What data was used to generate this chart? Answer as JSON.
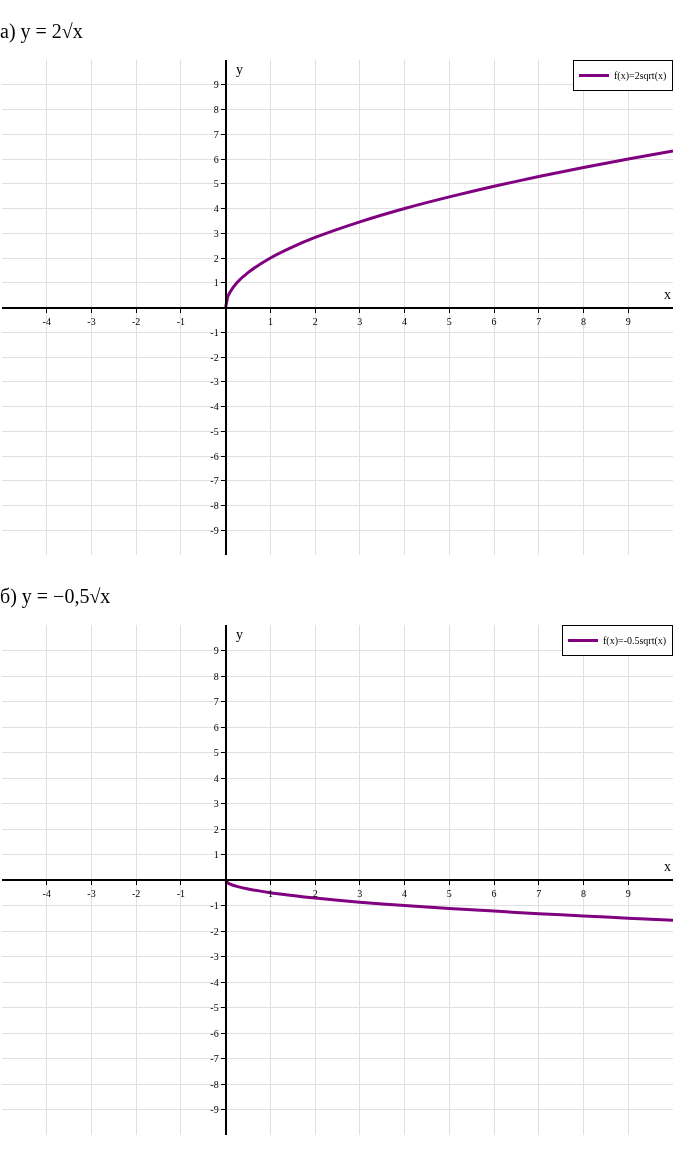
{
  "chart_data": [
    {
      "type": "line",
      "title": "а) y = 2√x",
      "xlabel": "x",
      "ylabel": "y",
      "xlim": [
        -5,
        10
      ],
      "ylim": [
        -10,
        10
      ],
      "xticks": [
        -4,
        -3,
        -2,
        -1,
        1,
        2,
        3,
        4,
        5,
        6,
        7,
        8,
        9
      ],
      "yticks": [
        -9,
        -8,
        -7,
        -6,
        -5,
        -4,
        -3,
        -2,
        -1,
        1,
        2,
        3,
        4,
        5,
        6,
        7,
        8,
        9
      ],
      "grid": true,
      "legend": "top right",
      "marker": "none",
      "line_style": "solid",
      "series": [
        {
          "name": "f(x)=2sqrt(x)",
          "color": "#800080",
          "x": [
            0,
            0.05,
            0.1,
            0.25,
            0.5,
            1,
            1.5,
            2,
            3,
            4,
            5,
            6,
            7,
            8,
            9,
            10
          ],
          "values": [
            0,
            0.45,
            0.63,
            1,
            1.41,
            2,
            2.45,
            2.83,
            3.46,
            4,
            4.47,
            4.9,
            5.29,
            5.66,
            6,
            6.32
          ]
        }
      ]
    },
    {
      "type": "line",
      "title": "б) y = −0,5√x",
      "xlabel": "x",
      "ylabel": "y",
      "xlim": [
        -5,
        10
      ],
      "ylim": [
        -10,
        10
      ],
      "xticks": [
        -4,
        -3,
        -2,
        -1,
        1,
        2,
        3,
        4,
        5,
        6,
        7,
        8,
        9
      ],
      "yticks": [
        -9,
        -8,
        -7,
        -6,
        -5,
        -4,
        -3,
        -2,
        -1,
        1,
        2,
        3,
        4,
        5,
        6,
        7,
        8,
        9
      ],
      "grid": true,
      "legend": "top right",
      "marker": "none",
      "line_style": "solid",
      "series": [
        {
          "name": "f(x)=-0.5sqrt(x)",
          "color": "#800080",
          "x": [
            0,
            0.05,
            0.1,
            0.25,
            0.5,
            1,
            1.5,
            2,
            3,
            4,
            5,
            6,
            7,
            8,
            9,
            10
          ],
          "values": [
            0,
            -0.11,
            -0.16,
            -0.25,
            -0.35,
            -0.5,
            -0.61,
            -0.71,
            -0.87,
            -1,
            -1.12,
            -1.22,
            -1.32,
            -1.41,
            -1.5,
            -1.58
          ]
        }
      ]
    }
  ]
}
